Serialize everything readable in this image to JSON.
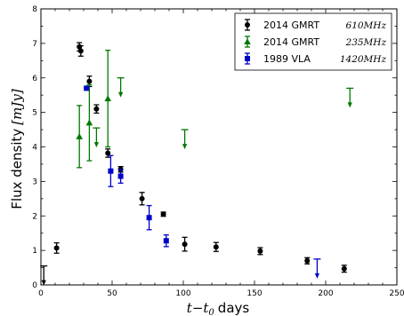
{
  "chart_data": {
    "type": "scatter",
    "xlabel": "t−t",
    "xlabel_sub": "0",
    "xlabel_unit": "days",
    "ylabel": "Flux density",
    "ylabel_unit": "[mJy]",
    "xlim": [
      0,
      250
    ],
    "ylim": [
      0,
      8
    ],
    "xticks": [
      "0",
      "50",
      "100",
      "150",
      "200",
      "250"
    ],
    "yticks": [
      "0",
      "1",
      "2",
      "3",
      "4",
      "5",
      "6",
      "7",
      "8"
    ],
    "grid": false,
    "legend_position": "top-right",
    "series": [
      {
        "name": "2014 GMRT",
        "unit": "610MHz",
        "marker": "circle",
        "color": "#000000",
        "points": [
          {
            "x": 11,
            "y": 1.07,
            "err": 0.15
          },
          {
            "x": 27,
            "y": 6.9,
            "err": 0.12
          },
          {
            "x": 28,
            "y": 6.78,
            "err": 0.15
          },
          {
            "x": 34,
            "y": 5.9,
            "err": 0.15
          },
          {
            "x": 39,
            "y": 5.1,
            "err": 0.12
          },
          {
            "x": 47,
            "y": 3.82,
            "err": 0.12
          },
          {
            "x": 56,
            "y": 3.35,
            "err": 0.08
          },
          {
            "x": 71,
            "y": 2.5,
            "err": 0.18
          },
          {
            "x": 86,
            "y": 2.05,
            "err": 0.06
          },
          {
            "x": 101,
            "y": 1.18,
            "err": 0.2
          },
          {
            "x": 123,
            "y": 1.1,
            "err": 0.13
          },
          {
            "x": 154,
            "y": 0.98,
            "err": 0.1
          },
          {
            "x": 187,
            "y": 0.7,
            "err": 0.09
          },
          {
            "x": 213,
            "y": 0.47,
            "err": 0.1
          }
        ],
        "upper_limits": [
          {
            "x": 2,
            "y": 0.55
          }
        ]
      },
      {
        "name": "2014 GMRT",
        "unit": "235MHz",
        "marker": "triangle",
        "color": "#007700",
        "points": [
          {
            "x": 27,
            "y": 4.3,
            "err": 0.9
          },
          {
            "x": 34,
            "y": 4.7,
            "err": 1.1
          },
          {
            "x": 47,
            "y": 5.4,
            "err": 1.4
          }
        ],
        "upper_limits": [
          {
            "x": 39,
            "y": 4.55
          },
          {
            "x": 56,
            "y": 6.0
          },
          {
            "x": 101,
            "y": 4.5
          },
          {
            "x": 217,
            "y": 5.7
          }
        ]
      },
      {
        "name": "1989 VLA",
        "unit": "1420MHz",
        "marker": "square",
        "color": "#0000cc",
        "points": [
          {
            "x": 32,
            "y": 5.7,
            "err": 0.0
          },
          {
            "x": 49,
            "y": 3.3,
            "err": 0.45
          },
          {
            "x": 56,
            "y": 3.15,
            "err": 0.2
          },
          {
            "x": 76,
            "y": 1.95,
            "err": 0.35
          },
          {
            "x": 88,
            "y": 1.28,
            "err": 0.17
          }
        ],
        "upper_limits": [
          {
            "x": 194,
            "y": 0.75
          }
        ]
      }
    ]
  }
}
